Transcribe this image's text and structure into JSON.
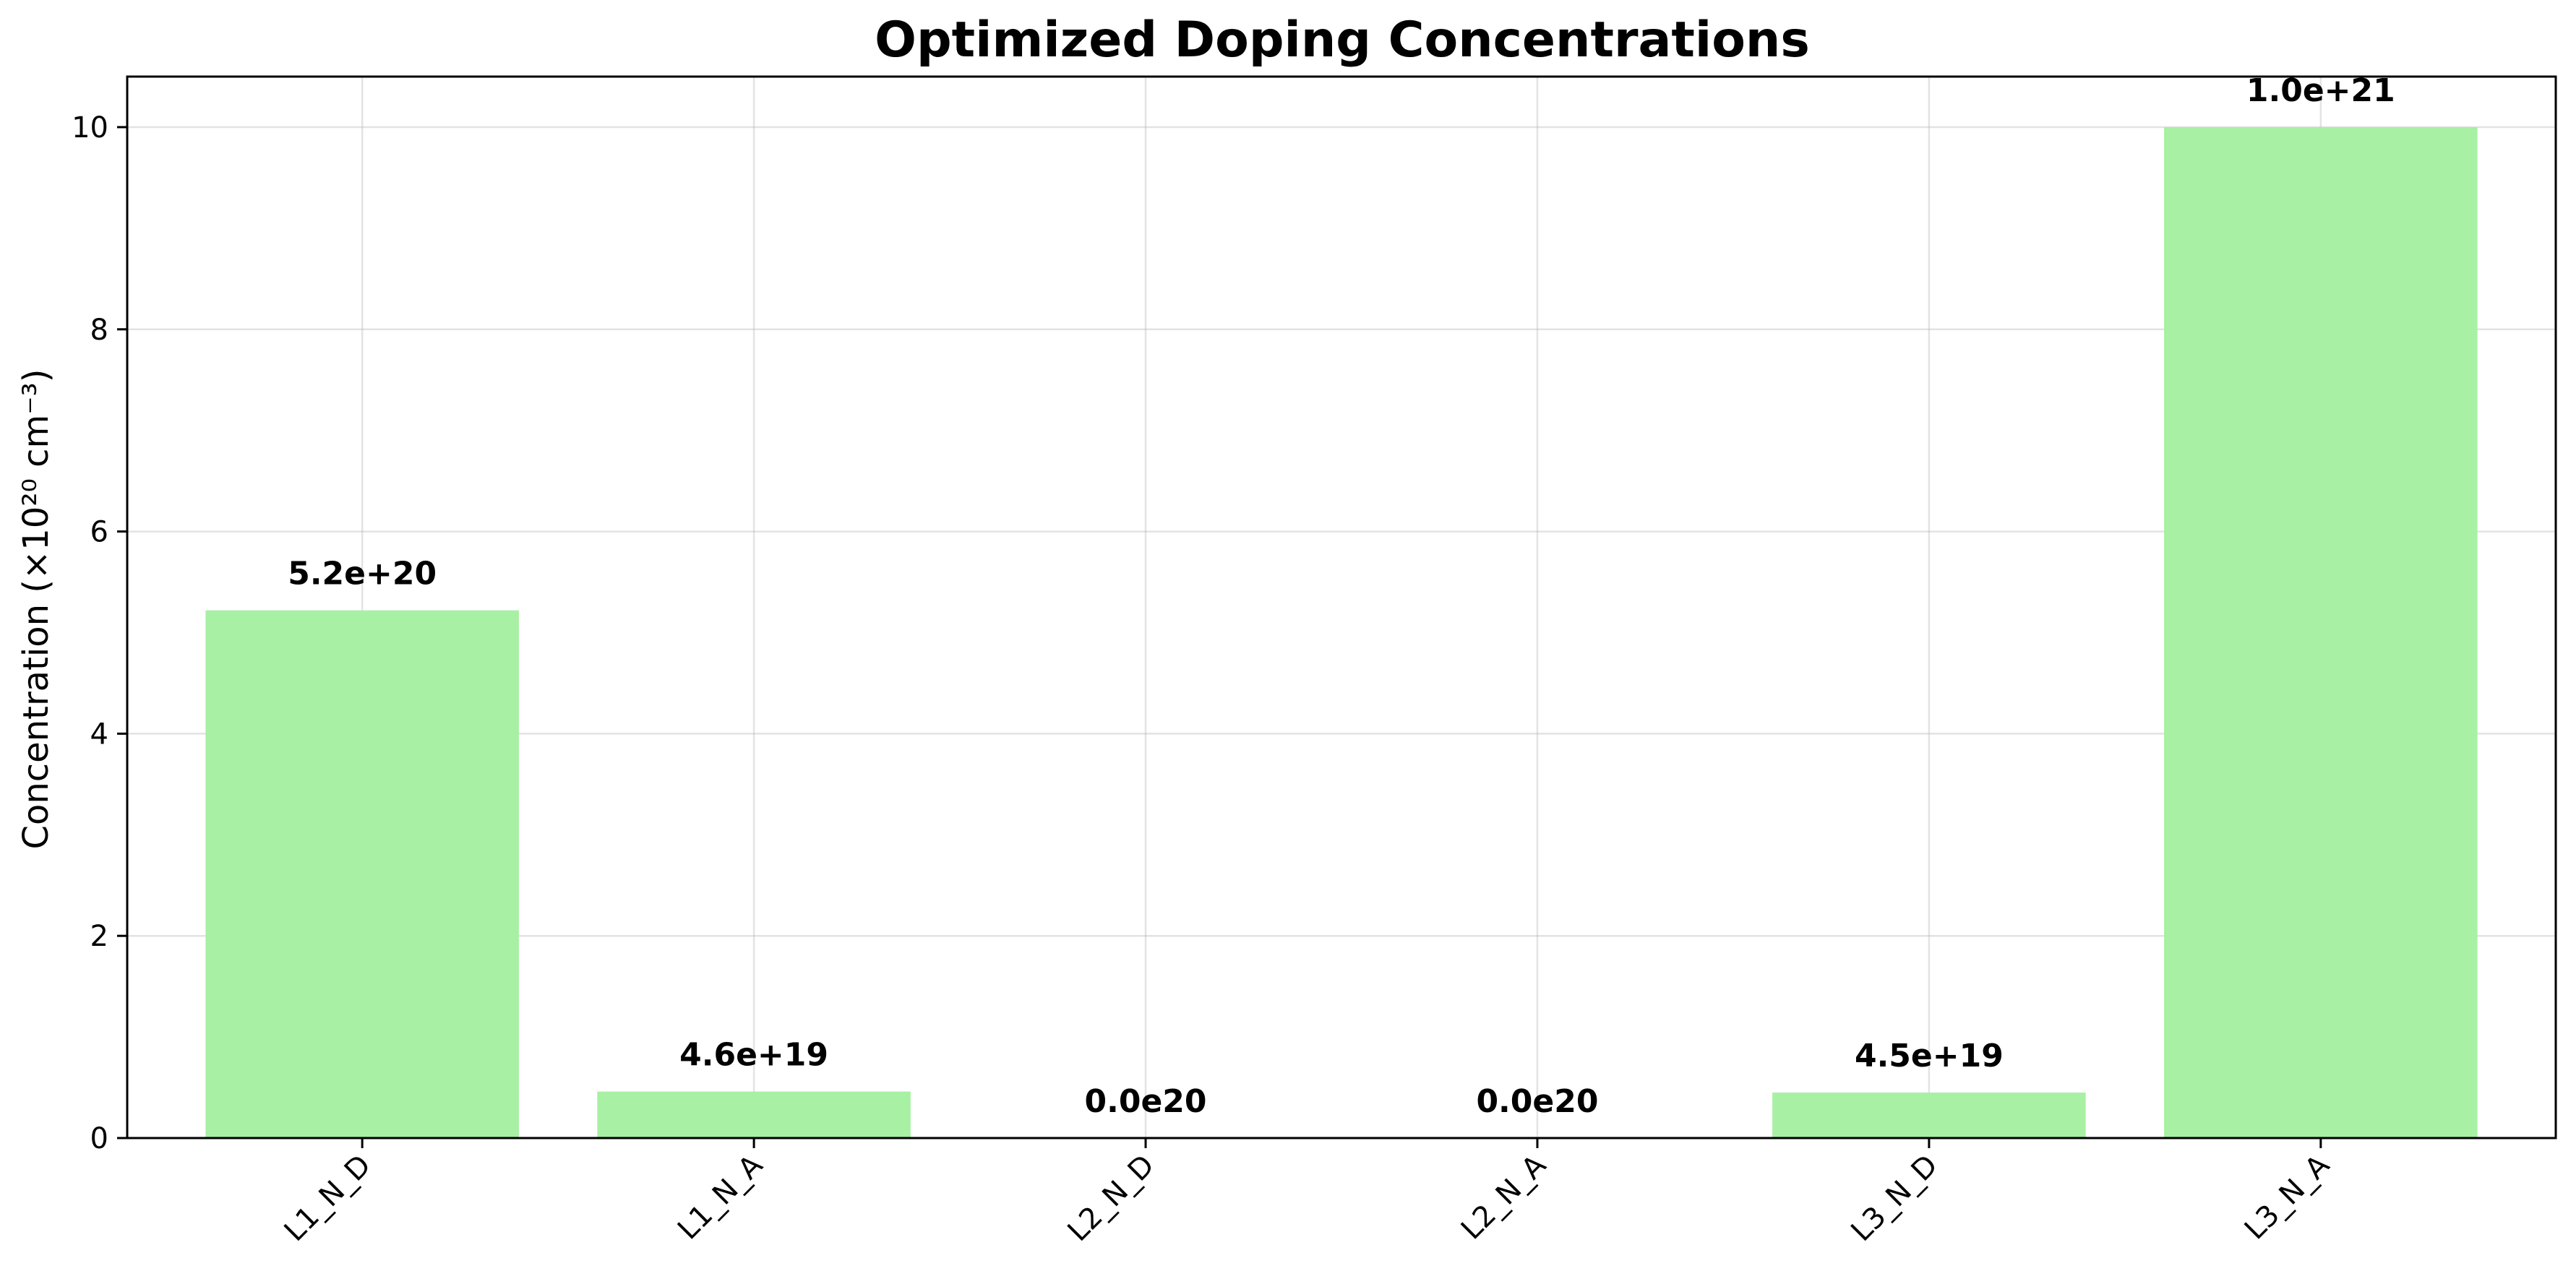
{
  "chart_data": {
    "type": "bar",
    "title": "Optimized Doping Concentrations",
    "xlabel": "",
    "ylabel": "Concentration (×10²⁰ cm⁻³)",
    "categories": [
      "L1_N_D",
      "L1_N_A",
      "L2_N_D",
      "L2_N_A",
      "L3_N_D",
      "L3_N_A"
    ],
    "values": [
      5.22,
      0.46,
      0.0,
      0.0,
      0.45,
      10.0
    ],
    "data_labels": [
      "5.2e+20",
      "4.6e+19",
      "0.0e20",
      "0.0e20",
      "4.5e+19",
      "1.0e+21"
    ],
    "ylim": [
      0,
      10.5
    ],
    "yticks": [
      0,
      2,
      4,
      6,
      8,
      10
    ],
    "grid": true,
    "bar_color": "#a8f0a4",
    "x_tick_rotation": -45
  }
}
